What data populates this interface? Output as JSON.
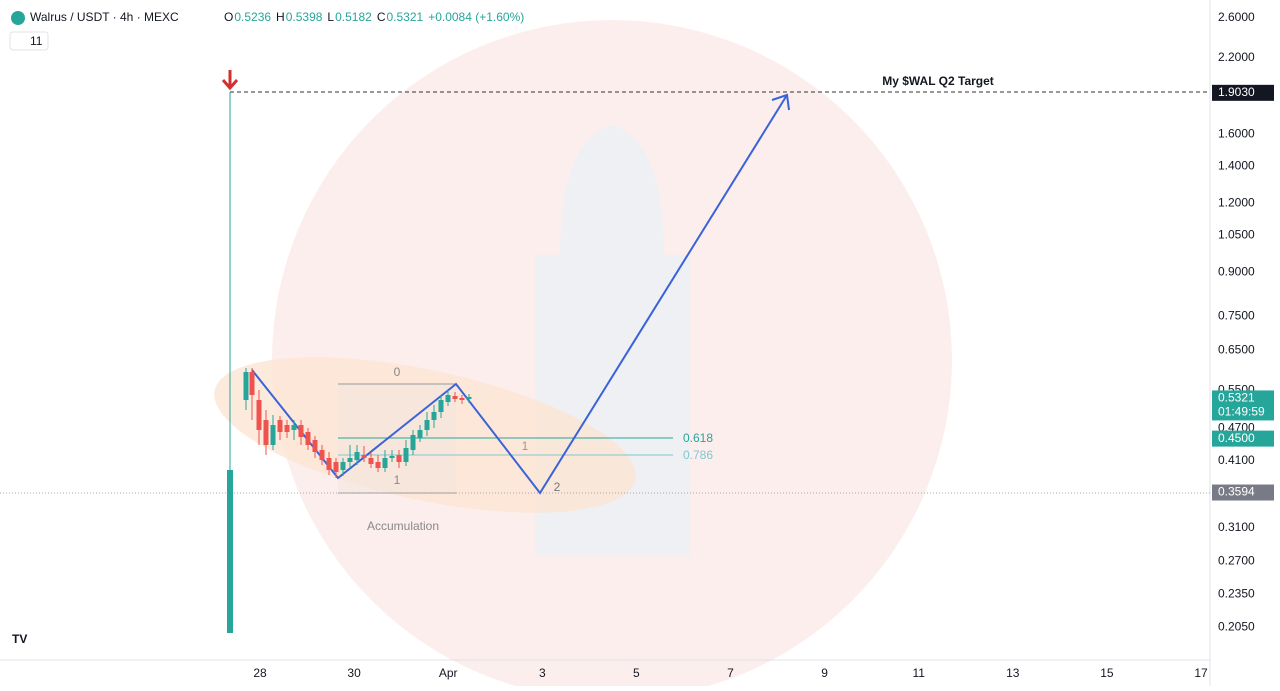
{
  "header": {
    "symbol": "Walrus / USDT · 4h · MEXC",
    "ohlc": [
      {
        "key": "O",
        "value": "0.5236"
      },
      {
        "key": "H",
        "value": "0.5398"
      },
      {
        "key": "L",
        "value": "0.5182"
      },
      {
        "key": "C",
        "value": "0.5321"
      }
    ],
    "change": "+0.0084 (+1.60%)",
    "indicator_count": "11"
  },
  "price_axis": {
    "ticks": [
      {
        "value": 2.6,
        "label": "2.6000"
      },
      {
        "value": 2.2,
        "label": "2.2000"
      },
      {
        "value": 1.6,
        "label": "1.6000"
      },
      {
        "value": 1.4,
        "label": "1.4000"
      },
      {
        "value": 1.2,
        "label": "1.2000"
      },
      {
        "value": 1.05,
        "label": "1.0500"
      },
      {
        "value": 0.9,
        "label": "0.9000"
      },
      {
        "value": 0.75,
        "label": "0.7500"
      },
      {
        "value": 0.65,
        "label": "0.6500"
      },
      {
        "value": 0.55,
        "label": "0.5500"
      },
      {
        "value": 0.47,
        "label": "0.4700"
      },
      {
        "value": 0.41,
        "label": "0.4100"
      },
      {
        "value": 0.31,
        "label": "0.3100"
      },
      {
        "value": 0.27,
        "label": "0.2700"
      },
      {
        "value": 0.235,
        "label": "0.2350"
      },
      {
        "value": 0.205,
        "label": "0.2050"
      }
    ],
    "tags": [
      {
        "value": 1.903,
        "label": "1.9030",
        "color": "#131722"
      },
      {
        "value": 0.5321,
        "label": "0.5321",
        "sub": "01:49:59",
        "color": "#26a69a"
      },
      {
        "value": 0.45,
        "label": "0.4500",
        "color": "#26a69a"
      },
      {
        "value": 0.3594,
        "label": "0.3594",
        "color": "#787b86"
      }
    ]
  },
  "time_axis": {
    "labels": [
      "28",
      "30",
      "Apr",
      "3",
      "5",
      "7",
      "9",
      "11",
      "13",
      "15",
      "17"
    ]
  },
  "annotations": {
    "target": "My $WAL Q2 Target",
    "fib_top": "0",
    "fib_bottom": "1",
    "fib_618": "0.618",
    "fib_786": "0.786",
    "wave_1": "1",
    "wave_2": "2",
    "zone": "Accumulation"
  }
}
